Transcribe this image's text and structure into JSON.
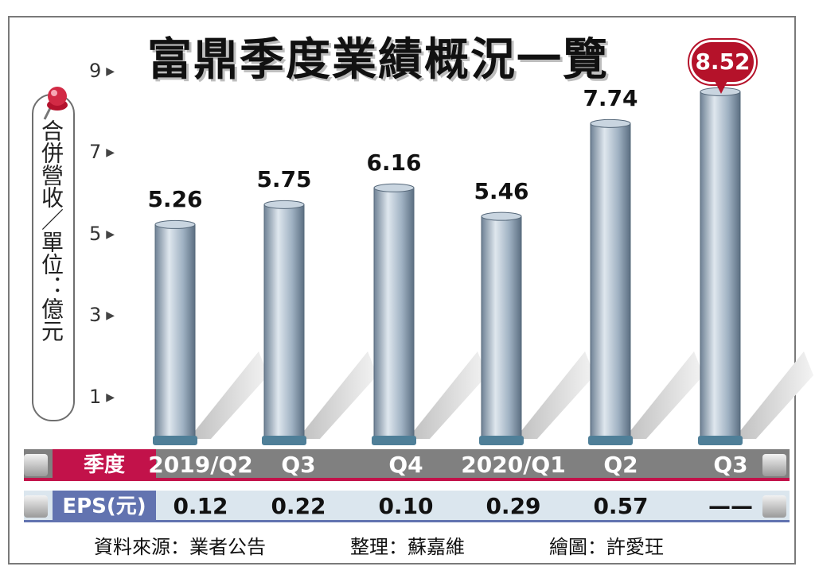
{
  "chart_data": {
    "type": "bar",
    "title": "富鼎季度業績概況一覽",
    "ylabel": "合併營收／單位：億元",
    "yticks": [
      "1",
      "3",
      "5",
      "7",
      "9"
    ],
    "ylim": [
      0,
      9.6
    ],
    "categories": [
      "2019/Q2",
      "Q3",
      "Q4",
      "2020/Q1",
      "Q2",
      "Q3"
    ],
    "values": [
      5.26,
      5.75,
      6.16,
      5.46,
      7.74,
      8.52
    ],
    "value_labels": [
      "5.26",
      "5.75",
      "6.16",
      "5.46",
      "7.74",
      "8.52"
    ],
    "highlight_index": 5,
    "highlight_color": "#b5122a",
    "bar_color": "#8ea3b8"
  },
  "table": {
    "quarter_label": "季度",
    "eps_label": "EPS(元)",
    "eps_values": [
      "0.12",
      "0.22",
      "0.10",
      "0.29",
      "0.57",
      "——"
    ]
  },
  "footer": {
    "source": "資料來源：業者公告",
    "editor": "整理：蘇嘉維",
    "illustrator": "繪圖：許愛玨"
  },
  "icons": {
    "pin": "pushpin-icon",
    "arrow": "triangle-right-icon"
  }
}
